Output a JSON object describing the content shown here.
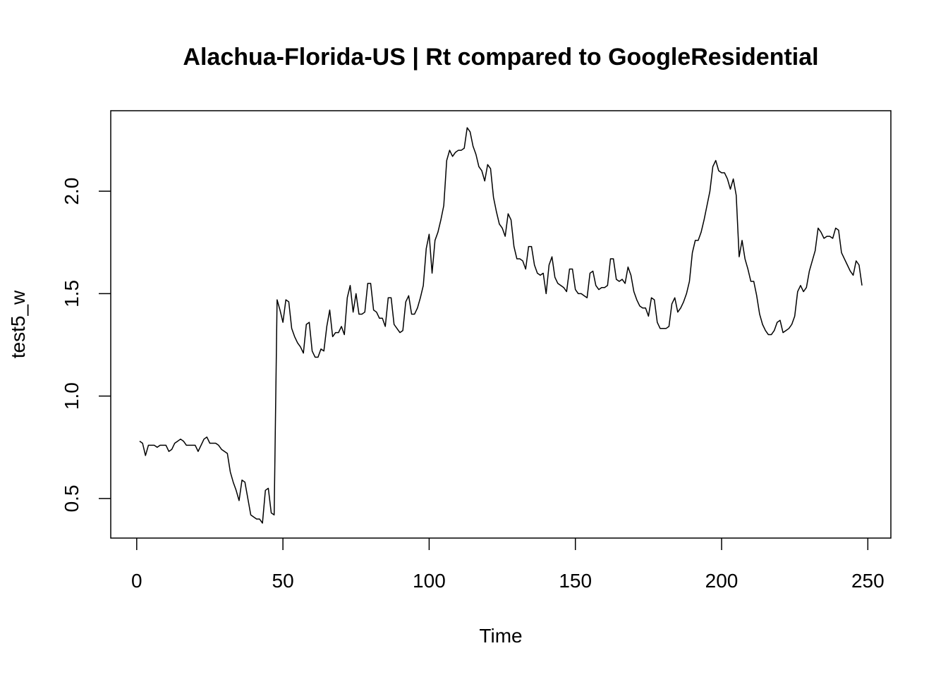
{
  "chart_data": {
    "type": "line",
    "title": "Alachua-Florida-US | Rt compared to GoogleResidential",
    "xlabel": "Time",
    "ylabel": "test5_w",
    "x": [
      1,
      2,
      3,
      4,
      5,
      6,
      7,
      8,
      9,
      10,
      11,
      12,
      13,
      14,
      15,
      16,
      17,
      18,
      19,
      20,
      21,
      22,
      23,
      24,
      25,
      26,
      27,
      28,
      29,
      30,
      31,
      32,
      33,
      34,
      35,
      36,
      37,
      38,
      39,
      40,
      41,
      42,
      43,
      44,
      45,
      46,
      47,
      48,
      49,
      50,
      51,
      52,
      53,
      54,
      55,
      56,
      57,
      58,
      59,
      60,
      61,
      62,
      63,
      64,
      65,
      66,
      67,
      68,
      69,
      70,
      71,
      72,
      73,
      74,
      75,
      76,
      77,
      78,
      79,
      80,
      81,
      82,
      83,
      84,
      85,
      86,
      87,
      88,
      89,
      90,
      91,
      92,
      93,
      94,
      95,
      96,
      97,
      98,
      99,
      100,
      101,
      102,
      103,
      104,
      105,
      106,
      107,
      108,
      109,
      110,
      111,
      112,
      113,
      114,
      115,
      116,
      117,
      118,
      119,
      120,
      121,
      122,
      123,
      124,
      125,
      126,
      127,
      128,
      129,
      130,
      131,
      132,
      133,
      134,
      135,
      136,
      137,
      138,
      139,
      140,
      141,
      142,
      143,
      144,
      145,
      146,
      147,
      148,
      149,
      150,
      151,
      152,
      153,
      154,
      155,
      156,
      157,
      158,
      159,
      160,
      161,
      162,
      163,
      164,
      165,
      166,
      167,
      168,
      169,
      170,
      171,
      172,
      173,
      174,
      175,
      176,
      177,
      178,
      179,
      180,
      181,
      182,
      183,
      184,
      185,
      186,
      187,
      188,
      189,
      190,
      191,
      192,
      193,
      194,
      195,
      196,
      197,
      198,
      199,
      200,
      201,
      202,
      203,
      204,
      205,
      206,
      207,
      208,
      209,
      210,
      211,
      212,
      213,
      214,
      215,
      216,
      217,
      218,
      219,
      220,
      221,
      222,
      223,
      224,
      225,
      226,
      227,
      228,
      229,
      230,
      231,
      232,
      233,
      234,
      235,
      236,
      237,
      238,
      239,
      240,
      241,
      242,
      243,
      244,
      245,
      246,
      247,
      248
    ],
    "values": [
      0.78,
      0.77,
      0.71,
      0.76,
      0.76,
      0.76,
      0.75,
      0.76,
      0.76,
      0.76,
      0.73,
      0.74,
      0.77,
      0.78,
      0.79,
      0.78,
      0.76,
      0.76,
      0.76,
      0.76,
      0.73,
      0.76,
      0.79,
      0.8,
      0.77,
      0.77,
      0.77,
      0.76,
      0.74,
      0.73,
      0.72,
      0.63,
      0.58,
      0.54,
      0.49,
      0.59,
      0.58,
      0.5,
      0.42,
      0.41,
      0.4,
      0.4,
      0.38,
      0.54,
      0.55,
      0.43,
      0.42,
      1.47,
      1.42,
      1.36,
      1.47,
      1.46,
      1.33,
      1.29,
      1.26,
      1.24,
      1.21,
      1.35,
      1.36,
      1.22,
      1.19,
      1.19,
      1.23,
      1.22,
      1.34,
      1.42,
      1.29,
      1.31,
      1.31,
      1.34,
      1.3,
      1.48,
      1.54,
      1.41,
      1.5,
      1.4,
      1.4,
      1.41,
      1.55,
      1.55,
      1.42,
      1.41,
      1.38,
      1.38,
      1.34,
      1.48,
      1.48,
      1.35,
      1.33,
      1.31,
      1.32,
      1.46,
      1.49,
      1.4,
      1.4,
      1.43,
      1.48,
      1.54,
      1.72,
      1.79,
      1.6,
      1.76,
      1.8,
      1.86,
      1.93,
      2.15,
      2.2,
      2.17,
      2.19,
      2.2,
      2.2,
      2.21,
      2.31,
      2.29,
      2.22,
      2.18,
      2.12,
      2.1,
      2.05,
      2.13,
      2.11,
      1.97,
      1.9,
      1.84,
      1.82,
      1.78,
      1.89,
      1.86,
      1.73,
      1.67,
      1.67,
      1.66,
      1.62,
      1.73,
      1.73,
      1.64,
      1.6,
      1.59,
      1.6,
      1.5,
      1.64,
      1.68,
      1.58,
      1.55,
      1.54,
      1.53,
      1.51,
      1.62,
      1.62,
      1.52,
      1.5,
      1.5,
      1.49,
      1.48,
      1.6,
      1.61,
      1.54,
      1.52,
      1.53,
      1.53,
      1.54,
      1.67,
      1.67,
      1.57,
      1.56,
      1.57,
      1.55,
      1.63,
      1.59,
      1.51,
      1.47,
      1.44,
      1.43,
      1.43,
      1.39,
      1.48,
      1.47,
      1.36,
      1.33,
      1.33,
      1.33,
      1.34,
      1.45,
      1.48,
      1.41,
      1.43,
      1.46,
      1.5,
      1.56,
      1.7,
      1.76,
      1.76,
      1.8,
      1.86,
      1.93,
      2.0,
      2.12,
      2.15,
      2.1,
      2.09,
      2.09,
      2.06,
      2.01,
      2.06,
      1.98,
      1.68,
      1.76,
      1.67,
      1.62,
      1.56,
      1.56,
      1.49,
      1.4,
      1.35,
      1.32,
      1.3,
      1.3,
      1.32,
      1.36,
      1.37,
      1.31,
      1.32,
      1.33,
      1.35,
      1.39,
      1.51,
      1.54,
      1.51,
      1.53,
      1.61,
      1.66,
      1.71,
      1.82,
      1.8,
      1.77,
      1.78,
      1.78,
      1.77,
      1.82,
      1.81,
      1.7,
      1.67,
      1.64,
      1.61,
      1.59,
      1.66,
      1.64,
      1.54
    ],
    "color": "#000000",
    "xlim": [
      -8.88,
      257.88
    ],
    "xticks": [
      0,
      50,
      100,
      150,
      200,
      250
    ],
    "ylim": [
      0.307,
      2.393
    ],
    "yticks": [
      0.5,
      {
        "value": 1,
        "label": "1.0"
      },
      1.5,
      {
        "value": 2,
        "label": "2.0"
      }
    ],
    "grid": false
  }
}
